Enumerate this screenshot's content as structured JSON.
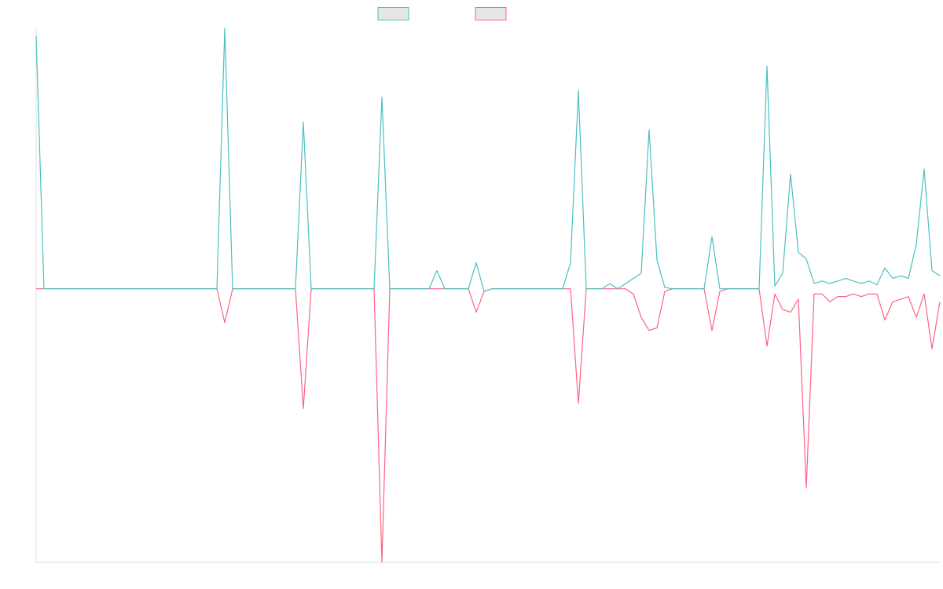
{
  "chart_data": {
    "type": "line",
    "series": [
      {
        "color": "#4bc0c0",
        "values": [
          97,
          0,
          0,
          0,
          0,
          0,
          0,
          0,
          0,
          0,
          0,
          0,
          0,
          0,
          0,
          0,
          0,
          0,
          0,
          0,
          0,
          0,
          0,
          0,
          100,
          0,
          0,
          0,
          0,
          0,
          0,
          0,
          0,
          0,
          64,
          0,
          0,
          0,
          0,
          0,
          0,
          0,
          0,
          0,
          73.5,
          0,
          0,
          0,
          0,
          0,
          0,
          7,
          0,
          0,
          0,
          0,
          10,
          -1,
          0,
          0,
          0,
          0,
          0,
          0,
          0,
          0,
          0,
          0,
          10,
          76,
          0,
          0,
          0,
          2,
          0,
          2,
          4,
          6,
          61,
          11,
          0.5,
          0,
          0,
          0,
          0,
          0,
          20,
          0,
          0,
          0,
          0,
          0,
          0,
          85.5,
          1,
          6,
          44,
          14,
          11.5,
          2,
          3,
          2,
          3,
          4,
          3,
          2,
          3,
          1.5,
          8,
          4,
          5,
          4,
          17,
          46,
          7,
          5
        ]
      },
      {
        "color": "#ff6384",
        "values": [
          0,
          0,
          0,
          0,
          0,
          0,
          0,
          0,
          0,
          0,
          0,
          0,
          0,
          0,
          0,
          0,
          0,
          0,
          0,
          0,
          0,
          0,
          0,
          0,
          -13,
          0,
          0,
          0,
          0,
          0,
          0,
          0,
          0,
          0,
          -46,
          0,
          0,
          0,
          0,
          0,
          0,
          0,
          0,
          0,
          -105,
          0,
          0,
          0,
          0,
          0,
          0,
          0,
          0,
          0,
          0,
          0,
          -9,
          -1,
          0,
          0,
          0,
          0,
          0,
          0,
          0,
          0,
          0,
          0,
          0,
          -44,
          0,
          0,
          0,
          0,
          0,
          0,
          -2,
          -11,
          -16,
          -15,
          -1,
          0,
          0,
          0,
          0,
          0,
          -16,
          -1,
          0,
          0,
          0,
          0,
          0,
          -22,
          -2,
          -8,
          -9,
          -4,
          -76.5,
          -2,
          -2,
          -5,
          -3,
          -3,
          -2,
          -3,
          -2,
          -2,
          -12,
          -5,
          -4,
          -3,
          -11,
          -2,
          -23,
          -5
        ]
      }
    ],
    "ylim": [
      -105,
      100
    ]
  }
}
